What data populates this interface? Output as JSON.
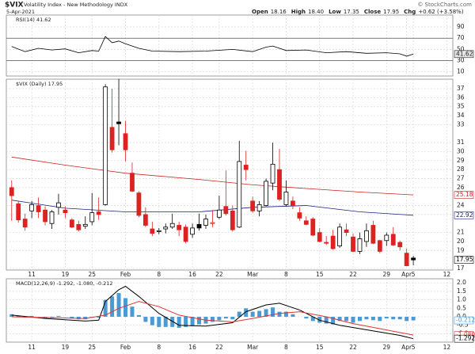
{
  "header": {
    "symbol": "$VIX",
    "name": "Volatility Index - New Methodology INDX",
    "date": "5-Apr-2021",
    "source": "© StockCharts.com",
    "quote": [
      {
        "label": "Open",
        "value": "18.16"
      },
      {
        "label": "High",
        "value": "18.40"
      },
      {
        "label": "Low",
        "value": "17.35"
      },
      {
        "label": "Close",
        "value": "17.95"
      },
      {
        "label": "Chg",
        "value": "+0.62 (+3.58%)"
      }
    ]
  },
  "chart_data": [
    {
      "type": "line",
      "legend": "RSI(14) 41.62",
      "color": "#000000",
      "band_lines": [
        70,
        30
      ],
      "ylim": [
        2.4,
        111.4
      ],
      "yticks": [
        90,
        70,
        50,
        30,
        10
      ],
      "x": [
        -3,
        -1,
        1,
        3,
        5,
        7,
        9,
        10,
        11,
        12,
        13,
        14,
        16,
        18,
        22,
        26,
        30,
        33,
        35,
        36,
        38,
        41,
        44,
        47,
        50,
        53,
        55,
        56,
        57
      ],
      "values": [
        55,
        46,
        52,
        49,
        51,
        44,
        48,
        47,
        73,
        62,
        65,
        60,
        52,
        47,
        46,
        47,
        50,
        46,
        54,
        56,
        48,
        49,
        44,
        46,
        43,
        44,
        42,
        38,
        41.62
      ]
    },
    {
      "type": "candlestick",
      "legend": "$VIX (Daily) 17.95",
      "up_color": "#000000",
      "down_color": "#dd2222",
      "ylim": [
        16.82,
        38.06
      ],
      "yticks": [
        17,
        19,
        20,
        21,
        23,
        24,
        26,
        27,
        28,
        29,
        30,
        31,
        33,
        34,
        35,
        36,
        37
      ],
      "xlim": [
        -3.8,
        62.9
      ],
      "xticks": [
        {
          "value": 0,
          "label": "11"
        },
        {
          "value": 5,
          "label": "19"
        },
        {
          "value": 9,
          "label": "25"
        },
        {
          "value": 14,
          "label": "Feb"
        },
        {
          "value": 19,
          "label": "8"
        },
        {
          "value": 24,
          "label": "16"
        },
        {
          "value": 28,
          "label": "22"
        },
        {
          "value": 33,
          "label": "Mar"
        },
        {
          "value": 38,
          "label": "8"
        },
        {
          "value": 43,
          "label": "15"
        },
        {
          "value": 48,
          "label": "22"
        },
        {
          "value": 53,
          "label": "29"
        },
        {
          "value": 56,
          "label": "Apr"
        },
        {
          "value": 57,
          "label": "5"
        },
        {
          "value": 62,
          "label": "12"
        }
      ],
      "x": [
        -3,
        -2,
        -1,
        0,
        1,
        2,
        3,
        4,
        5,
        6,
        7,
        8,
        9,
        10,
        11,
        12,
        13,
        14,
        15,
        16,
        17,
        18,
        19,
        20,
        21,
        22,
        23,
        24,
        25,
        26,
        27,
        28,
        29,
        30,
        31,
        32,
        33,
        34,
        35,
        36,
        37,
        38,
        39,
        40,
        41,
        42,
        43,
        44,
        45,
        46,
        47,
        48,
        49,
        50,
        51,
        52,
        53,
        54,
        55,
        56,
        57
      ],
      "open": [
        26.0,
        24.2,
        22.5,
        23.4,
        24.0,
        23.5,
        22.0,
        23.8,
        23.5,
        22.4,
        21.9,
        21.7,
        22.2,
        23.3,
        24.1,
        32.7,
        33.3,
        32.0,
        27.6,
        25.4,
        23.0,
        21.4,
        21.1,
        21.4,
        21.6,
        21.8,
        21.6,
        20.8,
        21.9,
        21.8,
        22.0,
        22.7,
        23.9,
        23.4,
        21.6,
        28.5,
        24.5,
        23.4,
        24.0,
        26.5,
        28.0,
        24.1,
        24.5,
        23.2,
        22.3,
        22.5,
        21.0,
        19.9,
        20.6,
        19.5,
        21.3,
        20.5,
        18.9,
        20.0,
        21.8,
        20.1,
        20.1,
        20.8,
        19.9,
        18.7,
        18.16
      ],
      "high": [
        26.8,
        24.5,
        23.1,
        24.5,
        24.9,
        23.9,
        23.5,
        25.3,
        23.9,
        22.6,
        22.3,
        22.8,
        25.4,
        24.9,
        37.5,
        37.0,
        38.1,
        33.4,
        28.8,
        25.6,
        23.8,
        22.2,
        21.5,
        22.0,
        23.1,
        22.2,
        21.9,
        22.0,
        23.1,
        23.0,
        23.5,
        25.1,
        27.9,
        24.0,
        31.2,
        30.1,
        25.0,
        24.5,
        27.0,
        31.0,
        30.3,
        26.8,
        25.0,
        23.8,
        22.8,
        22.7,
        21.5,
        20.6,
        21.3,
        22.0,
        22.0,
        20.9,
        21.0,
        22.0,
        22.3,
        20.2,
        21.0,
        21.6,
        20.1,
        19.2,
        18.4
      ],
      "low": [
        22.3,
        22.1,
        21.2,
        22.6,
        22.6,
        21.8,
        21.4,
        23.0,
        22.6,
        21.5,
        21.1,
        21.4,
        21.8,
        22.4,
        24.0,
        29.9,
        30.7,
        28.9,
        25.5,
        22.7,
        21.6,
        20.6,
        20.8,
        20.9,
        21.4,
        20.6,
        19.8,
        20.4,
        21.2,
        21.4,
        21.6,
        22.5,
        22.9,
        21.1,
        21.5,
        26.8,
        23.2,
        22.8,
        23.9,
        25.7,
        24.5,
        23.9,
        23.6,
        22.3,
        21.8,
        20.6,
        19.9,
        19.6,
        19.1,
        19.3,
        20.6,
        18.8,
        18.6,
        19.4,
        19.7,
        18.7,
        19.5,
        19.5,
        19.0,
        17.3,
        17.35
      ],
      "close": [
        25.1,
        22.4,
        21.6,
        24.1,
        23.3,
        22.2,
        23.3,
        24.3,
        23.2,
        21.6,
        21.3,
        21.9,
        23.2,
        23.0,
        37.2,
        30.2,
        33.1,
        30.2,
        25.6,
        22.9,
        21.8,
        20.9,
        21.2,
        21.6,
        22.0,
        21.3,
        20.0,
        21.5,
        21.5,
        22.5,
        22.1,
        23.5,
        23.1,
        21.3,
        28.9,
        28.0,
        23.4,
        24.1,
        26.7,
        28.6,
        24.7,
        25.5,
        24.0,
        22.6,
        21.9,
        20.7,
        20.0,
        19.8,
        19.2,
        21.6,
        21.0,
        18.9,
        20.3,
        21.2,
        19.8,
        18.9,
        20.7,
        19.6,
        19.4,
        17.3,
        17.95
      ],
      "overlays": [
        {
          "name": "MA(50) 22.92",
          "color": "#1a237e",
          "x": [
            -3,
            5,
            14,
            25,
            33,
            41,
            49,
            57
          ],
          "values": [
            24.6,
            23.7,
            23.3,
            23.3,
            23.8,
            24.0,
            23.3,
            22.92
          ]
        },
        {
          "name": "MA(200) 25.18",
          "color": "#cc2222",
          "x": [
            -3,
            5,
            14,
            25,
            33,
            41,
            49,
            57
          ],
          "values": [
            29.4,
            28.5,
            27.6,
            26.9,
            26.3,
            25.9,
            25.5,
            25.18
          ]
        }
      ]
    },
    {
      "type": "macd",
      "legend": "MACD(12,26,9) -1.292, -1.080, -0.212",
      "ylim": [
        -1.495,
        2.243
      ],
      "yticks": [
        {
          "value": 2,
          "label": "2.0"
        },
        {
          "value": 1.5,
          "label": "1.5"
        },
        {
          "value": 1,
          "label": "1.0"
        },
        {
          "value": 0.5,
          "label": "0.5"
        },
        {
          "value": 0,
          "label": "0.0"
        },
        {
          "value": -0.5,
          "label": "-0.5"
        },
        {
          "value": -1,
          "label": "-1.0"
        }
      ],
      "histogram": {
        "color": "#4a9bd4",
        "values": [
          0.15,
          0.05,
          -0.05,
          0.05,
          0.0,
          -0.1,
          -0.05,
          0.05,
          0.0,
          -0.1,
          -0.15,
          -0.15,
          -0.05,
          -0.05,
          1.0,
          1.2,
          1.4,
          1.1,
          0.6,
          0.1,
          -0.3,
          -0.5,
          -0.6,
          -0.6,
          -0.6,
          -0.65,
          -0.6,
          -0.55,
          -0.45,
          -0.4,
          -0.3,
          -0.2,
          -0.1,
          -0.15,
          0.3,
          0.5,
          0.3,
          0.35,
          0.45,
          0.55,
          0.3,
          0.3,
          0.15,
          0.0,
          -0.1,
          -0.25,
          -0.35,
          -0.4,
          -0.45,
          -0.25,
          -0.25,
          -0.35,
          -0.25,
          -0.15,
          -0.2,
          -0.25,
          -0.1,
          -0.15,
          -0.15,
          -0.25,
          -0.212
        ]
      },
      "series": [
        {
          "color": "#000000",
          "x": [
            -3,
            2,
            8,
            10,
            11,
            13,
            14,
            16,
            19,
            22,
            26,
            30,
            32,
            35,
            37,
            40,
            43,
            46,
            49,
            52,
            55,
            57
          ],
          "values": [
            0.1,
            -0.1,
            -0.25,
            -0.2,
            0.9,
            1.6,
            1.8,
            1.2,
            0.2,
            -0.5,
            -0.55,
            -0.35,
            0.3,
            0.7,
            0.8,
            0.4,
            -0.2,
            -0.5,
            -0.7,
            -0.9,
            -1.1,
            -1.292
          ]
        },
        {
          "color": "#dd3333",
          "end_label": "-1.080",
          "x": [
            -3,
            8,
            11,
            13,
            16,
            19,
            22,
            26,
            30,
            33,
            37,
            40,
            44,
            48,
            52,
            57
          ],
          "values": [
            0.0,
            -0.1,
            0.1,
            0.5,
            0.9,
            0.6,
            0.1,
            -0.2,
            -0.3,
            -0.1,
            0.2,
            0.3,
            0.0,
            -0.4,
            -0.7,
            -1.08
          ]
        }
      ]
    }
  ]
}
